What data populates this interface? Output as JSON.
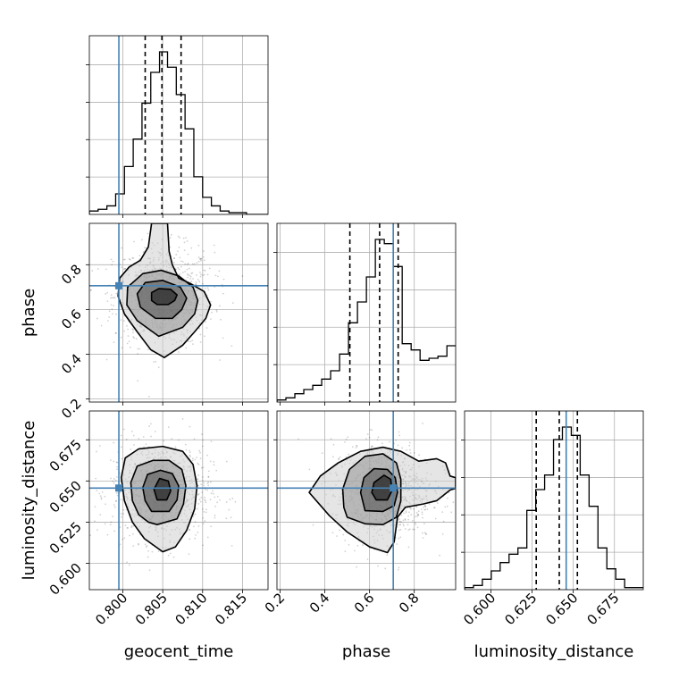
{
  "chart_data": {
    "type": "corner",
    "parameters": [
      "geocent_time",
      "phase",
      "luminosity_distance"
    ],
    "axis_labels": {
      "x": [
        "geocent_time",
        "phase",
        "luminosity_distance"
      ],
      "y": [
        "phase",
        "luminosity_distance"
      ]
    },
    "ranges": {
      "geocent_time": [
        0.7958,
        0.8182
      ],
      "phase": [
        0.186,
        0.985
      ],
      "luminosity_distance": [
        0.584,
        0.6925
      ]
    },
    "ticks": {
      "geocent_time": [
        "0.800",
        "0.805",
        "0.810",
        "0.815"
      ],
      "phase": [
        "0.2",
        "0.4",
        "0.6",
        "0.8"
      ],
      "phase_y": [
        "0.2",
        "0.4",
        "0.6",
        "0.8"
      ],
      "luminosity_distance": [
        "0.600",
        "0.625",
        "0.650",
        "0.675"
      ],
      "luminosity_distance_y": [
        "0.600",
        "0.625",
        "0.650",
        "0.675"
      ]
    },
    "truths": {
      "geocent_time": 0.7995,
      "phase": 0.706,
      "luminosity_distance": 0.6457
    },
    "quantiles": {
      "geocent_time": [
        0.8028,
        0.8049,
        0.8073
      ],
      "phase": [
        0.512,
        0.645,
        0.728
      ],
      "luminosity_distance": [
        0.6275,
        0.6415,
        0.6525
      ]
    },
    "histograms": {
      "geocent_time": {
        "edges": [
          0.7958,
          0.7969,
          0.798,
          0.7991,
          0.8002,
          0.8013,
          0.8024,
          0.8035,
          0.8046,
          0.8056,
          0.8067,
          0.8078,
          0.8089,
          0.81,
          0.8111,
          0.8122,
          0.8133,
          0.8144,
          0.8155,
          0.8166,
          0.8182
        ],
        "counts": [
          2,
          3,
          5,
          12,
          28,
          44,
          65,
          83,
          95,
          86,
          70,
          50,
          22,
          10,
          5,
          2,
          1,
          1,
          0,
          0
        ]
      },
      "phase": {
        "edges": [
          0.186,
          0.226,
          0.266,
          0.306,
          0.346,
          0.386,
          0.426,
          0.466,
          0.506,
          0.546,
          0.586,
          0.626,
          0.666,
          0.706,
          0.746,
          0.786,
          0.826,
          0.866,
          0.906,
          0.946,
          0.985
        ],
        "counts": [
          1,
          2,
          4,
          6,
          8,
          11,
          15,
          23,
          38,
          48,
          60,
          78,
          76,
          65,
          28,
          25,
          20,
          21,
          22,
          27
        ]
      },
      "luminosity_distance": {
        "edges": [
          0.584,
          0.5894,
          0.5948,
          0.6002,
          0.6056,
          0.611,
          0.6164,
          0.6218,
          0.6272,
          0.6326,
          0.638,
          0.6434,
          0.6488,
          0.6542,
          0.6596,
          0.665,
          0.6704,
          0.6758,
          0.6812,
          0.6866,
          0.6925
        ],
        "counts": [
          1,
          2,
          5,
          9,
          13,
          17,
          20,
          38,
          48,
          55,
          72,
          78,
          74,
          55,
          40,
          20,
          10,
          5,
          1,
          1
        ]
      }
    },
    "pairs": [
      {
        "x": "geocent_time",
        "y": "phase",
        "peak": [
          0.8051,
          0.66
        ],
        "contours": [
          [
            [
              0.8043,
              0.622
            ],
            [
              0.8057,
              0.622
            ],
            [
              0.8065,
              0.64
            ],
            [
              0.8068,
              0.665
            ],
            [
              0.806,
              0.69
            ],
            [
              0.8045,
              0.693
            ],
            [
              0.8036,
              0.675
            ],
            [
              0.8036,
              0.64
            ]
          ],
          [
            [
              0.8041,
              0.56
            ],
            [
              0.8062,
              0.56
            ],
            [
              0.8074,
              0.6
            ],
            [
              0.808,
              0.65
            ],
            [
              0.8072,
              0.7
            ],
            [
              0.805,
              0.73
            ],
            [
              0.8028,
              0.72
            ],
            [
              0.8018,
              0.67
            ],
            [
              0.8022,
              0.61
            ]
          ],
          [
            [
              0.8045,
              0.48
            ],
            [
              0.8075,
              0.52
            ],
            [
              0.809,
              0.58
            ],
            [
              0.8094,
              0.64
            ],
            [
              0.8088,
              0.7
            ],
            [
              0.807,
              0.75
            ],
            [
              0.8048,
              0.775
            ],
            [
              0.8025,
              0.76
            ],
            [
              0.8006,
              0.7
            ],
            [
              0.8005,
              0.62
            ],
            [
              0.8018,
              0.55
            ]
          ],
          [
            [
              0.8052,
              0.385
            ],
            [
              0.8075,
              0.44
            ],
            [
              0.809,
              0.5
            ],
            [
              0.8104,
              0.56
            ],
            [
              0.811,
              0.62
            ],
            [
              0.8102,
              0.68
            ],
            [
              0.8085,
              0.715
            ],
            [
              0.807,
              0.74
            ],
            [
              0.8062,
              0.8
            ],
            [
              0.8058,
              0.86
            ],
            [
              0.8056,
              0.985
            ],
            [
              0.8036,
              0.985
            ],
            [
              0.8032,
              0.88
            ],
            [
              0.8022,
              0.82
            ],
            [
              0.8008,
              0.79
            ],
            [
              0.7996,
              0.74
            ],
            [
              0.7994,
              0.66
            ],
            [
              0.8002,
              0.58
            ],
            [
              0.8018,
              0.5
            ],
            [
              0.8035,
              0.42
            ]
          ]
        ]
      },
      {
        "x": "geocent_time",
        "y": "luminosity_distance",
        "peak": [
          0.8048,
          0.6435
        ],
        "contours": [
          [
            [
              0.8043,
              0.6385
            ],
            [
              0.8055,
              0.6385
            ],
            [
              0.806,
              0.644
            ],
            [
              0.8057,
              0.65
            ],
            [
              0.8046,
              0.6515
            ],
            [
              0.8039,
              0.645
            ]
          ],
          [
            [
              0.8036,
              0.6315
            ],
            [
              0.8058,
              0.6315
            ],
            [
              0.8068,
              0.6385
            ],
            [
              0.807,
              0.647
            ],
            [
              0.8062,
              0.6545
            ],
            [
              0.8047,
              0.6565
            ],
            [
              0.8031,
              0.654
            ],
            [
              0.8025,
              0.646
            ],
            [
              0.8028,
              0.638
            ]
          ],
          [
            [
              0.8043,
              0.6235
            ],
            [
              0.8068,
              0.627
            ],
            [
              0.8076,
              0.636
            ],
            [
              0.8079,
              0.647
            ],
            [
              0.8074,
              0.657
            ],
            [
              0.8058,
              0.6625
            ],
            [
              0.8038,
              0.6625
            ],
            [
              0.8018,
              0.659
            ],
            [
              0.801,
              0.649
            ],
            [
              0.8012,
              0.638
            ],
            [
              0.802,
              0.6295
            ],
            [
              0.8032,
              0.625
            ]
          ],
          [
            [
              0.805,
              0.607
            ],
            [
              0.8066,
              0.61
            ],
            [
              0.808,
              0.62
            ],
            [
              0.809,
              0.633
            ],
            [
              0.8093,
              0.647
            ],
            [
              0.8088,
              0.66
            ],
            [
              0.8075,
              0.668
            ],
            [
              0.805,
              0.671
            ],
            [
              0.802,
              0.6695
            ],
            [
              0.8003,
              0.664
            ],
            [
              0.7998,
              0.652
            ],
            [
              0.8002,
              0.638
            ],
            [
              0.8012,
              0.625
            ],
            [
              0.8027,
              0.615
            ]
          ]
        ]
      },
      {
        "x": "phase",
        "y": "luminosity_distance",
        "peak": [
          0.66,
          0.6435
        ],
        "contours": [
          [
            [
              0.63,
              0.6385
            ],
            [
              0.68,
              0.6385
            ],
            [
              0.7,
              0.644
            ],
            [
              0.695,
              0.651
            ],
            [
              0.665,
              0.6535
            ],
            [
              0.62,
              0.649
            ],
            [
              0.61,
              0.643
            ]
          ],
          [
            [
              0.58,
              0.632
            ],
            [
              0.66,
              0.6315
            ],
            [
              0.71,
              0.635
            ],
            [
              0.725,
              0.643
            ],
            [
              0.715,
              0.652
            ],
            [
              0.68,
              0.657
            ],
            [
              0.62,
              0.6575
            ],
            [
              0.575,
              0.652
            ],
            [
              0.56,
              0.643
            ]
          ],
          [
            [
              0.5,
              0.628
            ],
            [
              0.58,
              0.624
            ],
            [
              0.66,
              0.6235
            ],
            [
              0.72,
              0.628
            ],
            [
              0.74,
              0.638
            ],
            [
              0.74,
              0.651
            ],
            [
              0.72,
              0.661
            ],
            [
              0.66,
              0.6665
            ],
            [
              0.58,
              0.665
            ],
            [
              0.51,
              0.657
            ],
            [
              0.48,
              0.645
            ],
            [
              0.485,
              0.634
            ]
          ],
          [
            [
              0.33,
              0.643
            ],
            [
              0.42,
              0.629
            ],
            [
              0.5,
              0.619
            ],
            [
              0.6,
              0.61
            ],
            [
              0.68,
              0.6065
            ],
            [
              0.71,
              0.613
            ],
            [
              0.725,
              0.628
            ],
            [
              0.76,
              0.634
            ],
            [
              0.84,
              0.636
            ],
            [
              0.9,
              0.638
            ],
            [
              0.96,
              0.6445
            ],
            [
              0.985,
              0.6455
            ],
            [
              0.985,
              0.652
            ],
            [
              0.96,
              0.653
            ],
            [
              0.94,
              0.661
            ],
            [
              0.9,
              0.6635
            ],
            [
              0.82,
              0.662
            ],
            [
              0.74,
              0.668
            ],
            [
              0.66,
              0.6705
            ],
            [
              0.56,
              0.668
            ],
            [
              0.46,
              0.661
            ],
            [
              0.38,
              0.653
            ]
          ]
        ]
      }
    ]
  }
}
